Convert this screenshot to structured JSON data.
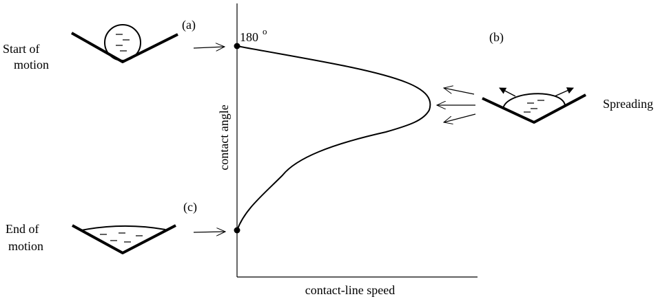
{
  "start_label": {
    "line1": "Start of",
    "line2": "motion"
  },
  "end_label": {
    "line1": "End of",
    "line2": "motion"
  },
  "spreading_label": "Spreading",
  "panel_a": "(a)",
  "panel_b": "(b)",
  "panel_c": "(c)",
  "angle_value": "180",
  "angle_unit": "o",
  "y_axis_label": "contact angle",
  "x_axis_label": "contact-line speed"
}
